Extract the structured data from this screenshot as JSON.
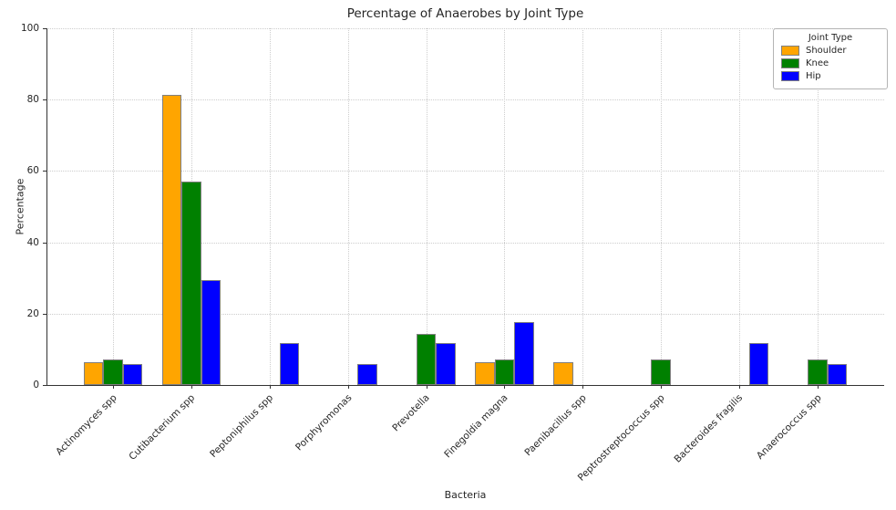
{
  "chart_data": {
    "type": "bar",
    "title": "Percentage of Anaerobes by Joint Type",
    "xlabel": "Bacteria",
    "ylabel": "Percentage",
    "ylim": [
      0,
      100
    ],
    "yticks": [
      0,
      20,
      40,
      60,
      80,
      100
    ],
    "grid": true,
    "categories": [
      "Actinomyces spp",
      "Cutibacterium spp",
      "Peptoniphilus spp",
      "Porphyromonas",
      "Prevotella",
      "Finegoldia magna",
      "Paenibacillus spp",
      "Peptrostreptococcus spp",
      "Bacteroides fragilis",
      "Anaerococcus spp"
    ],
    "series": [
      {
        "name": "Shoulder",
        "color": "#FFA500",
        "values": [
          6.3,
          81.3,
          0,
          0,
          0,
          6.3,
          6.3,
          0,
          0,
          0
        ]
      },
      {
        "name": "Knee",
        "color": "#008000",
        "values": [
          7.1,
          57.1,
          0,
          0,
          14.3,
          7.1,
          0,
          7.1,
          0,
          7.1
        ]
      },
      {
        "name": "Hip",
        "color": "#0000FF",
        "values": [
          5.9,
          29.4,
          11.8,
          5.9,
          11.8,
          17.6,
          0,
          0,
          11.8,
          5.9
        ]
      }
    ],
    "legend": {
      "title": "Joint Type",
      "position": "upper right"
    }
  }
}
